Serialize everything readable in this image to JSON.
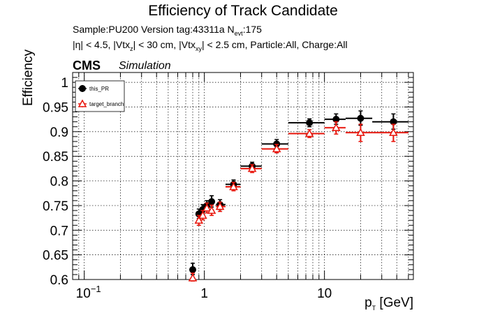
{
  "header": {
    "title": "Efficiency of Track Candidate",
    "sample_text": "Sample:PU200   Version tag:43311a  N",
    "nevt_sub": "evt",
    "nevt_value": ":175",
    "cuts_a": "|η| < 4.5, |Vtx",
    "cuts_a_sub": "z",
    "cuts_b": "| < 30 cm, |Vtx",
    "cuts_b_sub": "xy",
    "cuts_c": "| < 2.5 cm, Particle:All, Charge:All",
    "cms": "CMS",
    "simulation": "Simulation"
  },
  "chart_data": {
    "type": "scatter",
    "xlabel": "p_T [GeV]",
    "xlabel_main": "p",
    "xlabel_sub": "T",
    "xlabel_unit": " [GeV]",
    "ylabel": "Efficiency",
    "xscale": "log",
    "xlim": [
      0.08,
      55
    ],
    "ylim": [
      0.6,
      1.02
    ],
    "grid": true,
    "legend_position": "top-left",
    "x_ticks": [
      {
        "value": 0.1,
        "base": "10",
        "exp": "−1"
      },
      {
        "value": 1,
        "base": "1",
        "exp": ""
      },
      {
        "value": 10,
        "base": "10",
        "exp": ""
      }
    ],
    "y_ticks": [
      {
        "value": 0.6,
        "label": "0.6"
      },
      {
        "value": 0.65,
        "label": "0.65"
      },
      {
        "value": 0.7,
        "label": "0.7"
      },
      {
        "value": 0.75,
        "label": "0.75"
      },
      {
        "value": 0.8,
        "label": "0.8"
      },
      {
        "value": 0.85,
        "label": "0.85"
      },
      {
        "value": 0.9,
        "label": "0.9"
      },
      {
        "value": 0.95,
        "label": "0.95"
      },
      {
        "value": 1.0,
        "label": "1"
      }
    ],
    "series": [
      {
        "name": "this_PR",
        "color": "#000000",
        "marker": "filled-circle",
        "points": [
          {
            "x": 0.8,
            "y": 0.62,
            "xlo": 0.78,
            "xhi": 0.82,
            "ylo": 0.61,
            "yhi": 0.633
          },
          {
            "x": 0.9,
            "y": 0.733,
            "xlo": 0.86,
            "xhi": 0.94,
            "ylo": 0.724,
            "yhi": 0.743
          },
          {
            "x": 0.97,
            "y": 0.742,
            "xlo": 0.94,
            "xhi": 1.0,
            "ylo": 0.733,
            "yhi": 0.752
          },
          {
            "x": 1.05,
            "y": 0.75,
            "xlo": 1.0,
            "xhi": 1.1,
            "ylo": 0.74,
            "yhi": 0.76
          },
          {
            "x": 1.15,
            "y": 0.758,
            "xlo": 1.1,
            "xhi": 1.2,
            "ylo": 0.747,
            "yhi": 0.77
          },
          {
            "x": 1.35,
            "y": 0.752,
            "xlo": 1.25,
            "xhi": 1.5,
            "ylo": 0.742,
            "yhi": 0.762
          },
          {
            "x": 1.75,
            "y": 0.793,
            "xlo": 1.5,
            "xhi": 2.0,
            "ylo": 0.785,
            "yhi": 0.802
          },
          {
            "x": 2.5,
            "y": 0.83,
            "xlo": 2.0,
            "xhi": 3.0,
            "ylo": 0.822,
            "yhi": 0.838
          },
          {
            "x": 4.0,
            "y": 0.875,
            "xlo": 3.0,
            "xhi": 5.0,
            "ylo": 0.867,
            "yhi": 0.884
          },
          {
            "x": 7.5,
            "y": 0.918,
            "xlo": 5.0,
            "xhi": 10.0,
            "ylo": 0.91,
            "yhi": 0.926
          },
          {
            "x": 12.5,
            "y": 0.925,
            "xlo": 10.0,
            "xhi": 15.0,
            "ylo": 0.915,
            "yhi": 0.936
          },
          {
            "x": 20.0,
            "y": 0.927,
            "xlo": 15.0,
            "xhi": 25.0,
            "ylo": 0.913,
            "yhi": 0.942
          },
          {
            "x": 37.5,
            "y": 0.92,
            "xlo": 25.0,
            "xhi": 50.0,
            "ylo": 0.905,
            "yhi": 0.936
          }
        ]
      },
      {
        "name": "target_branch",
        "color": "#e8140a",
        "marker": "open-triangle",
        "points": [
          {
            "x": 0.8,
            "y": 0.603,
            "xlo": 0.78,
            "xhi": 0.82,
            "ylo": 0.597,
            "yhi": 0.613
          },
          {
            "x": 0.9,
            "y": 0.72,
            "xlo": 0.86,
            "xhi": 0.94,
            "ylo": 0.71,
            "yhi": 0.73
          },
          {
            "x": 0.97,
            "y": 0.73,
            "xlo": 0.94,
            "xhi": 1.0,
            "ylo": 0.721,
            "yhi": 0.74
          },
          {
            "x": 1.05,
            "y": 0.745,
            "xlo": 1.0,
            "xhi": 1.1,
            "ylo": 0.735,
            "yhi": 0.755
          },
          {
            "x": 1.15,
            "y": 0.74,
            "xlo": 1.1,
            "xhi": 1.2,
            "ylo": 0.73,
            "yhi": 0.751
          },
          {
            "x": 1.35,
            "y": 0.748,
            "xlo": 1.25,
            "xhi": 1.5,
            "ylo": 0.738,
            "yhi": 0.757
          },
          {
            "x": 1.75,
            "y": 0.788,
            "xlo": 1.5,
            "xhi": 2.0,
            "ylo": 0.78,
            "yhi": 0.797
          },
          {
            "x": 2.5,
            "y": 0.825,
            "xlo": 2.0,
            "xhi": 3.0,
            "ylo": 0.817,
            "yhi": 0.833
          },
          {
            "x": 4.0,
            "y": 0.865,
            "xlo": 3.0,
            "xhi": 5.0,
            "ylo": 0.857,
            "yhi": 0.874
          },
          {
            "x": 7.5,
            "y": 0.896,
            "xlo": 5.0,
            "xhi": 10.0,
            "ylo": 0.888,
            "yhi": 0.904
          },
          {
            "x": 12.5,
            "y": 0.908,
            "xlo": 10.0,
            "xhi": 15.0,
            "ylo": 0.895,
            "yhi": 0.92
          },
          {
            "x": 20.0,
            "y": 0.898,
            "xlo": 15.0,
            "xhi": 25.0,
            "ylo": 0.88,
            "yhi": 0.915
          },
          {
            "x": 37.5,
            "y": 0.898,
            "xlo": 25.0,
            "xhi": 50.0,
            "ylo": 0.88,
            "yhi": 0.915
          }
        ]
      }
    ]
  }
}
